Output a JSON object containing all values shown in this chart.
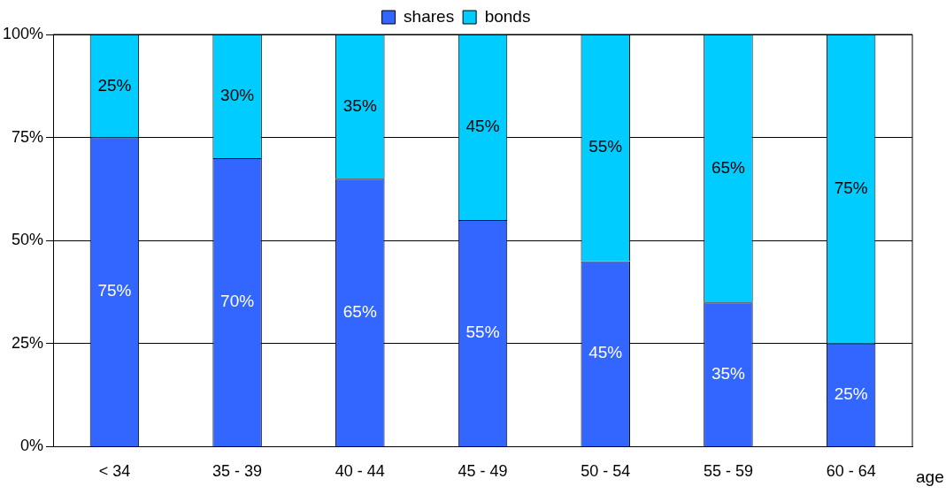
{
  "chart_data": {
    "type": "bar",
    "stacked": true,
    "xlabel": "age",
    "categories": [
      "< 34",
      "35 - 39",
      "40 - 44",
      "45 - 49",
      "50 - 54",
      "55 - 59",
      "60 - 64"
    ],
    "series": [
      {
        "name": "shares",
        "color": "#3366ff",
        "values": [
          75,
          70,
          65,
          55,
          45,
          35,
          25
        ],
        "value_labels": [
          "75%",
          "70%",
          "65%",
          "55%",
          "45%",
          "35%",
          "25%"
        ]
      },
      {
        "name": "bonds",
        "color": "#00ccff",
        "values": [
          25,
          30,
          35,
          45,
          55,
          65,
          75
        ],
        "value_labels": [
          "25%",
          "30%",
          "35%",
          "45%",
          "55%",
          "65%",
          "75%"
        ]
      }
    ],
    "ylim": [
      0,
      100
    ],
    "yticks": [
      {
        "value": 0,
        "label": "0%"
      },
      {
        "value": 25,
        "label": "25%"
      },
      {
        "value": 50,
        "label": "50%"
      },
      {
        "value": 75,
        "label": "75%"
      },
      {
        "value": 100,
        "label": "100%"
      }
    ],
    "grid": "y",
    "legend": "top"
  }
}
